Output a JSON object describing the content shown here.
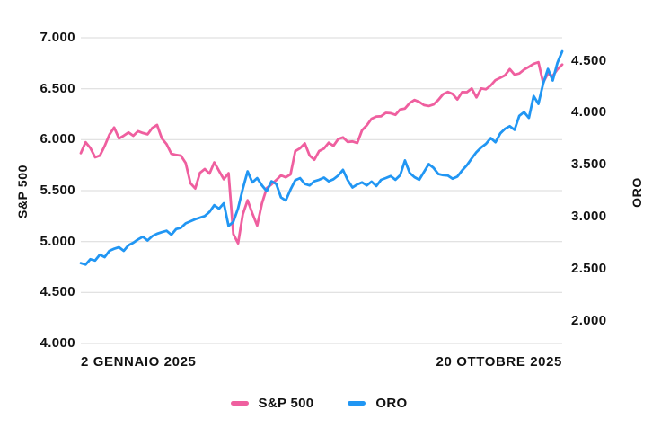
{
  "page": {
    "background": "#ffffff"
  },
  "chart_data": {
    "type": "line",
    "title": "",
    "x_axis": {
      "start_label": "2 GENNAIO 2025",
      "end_label": "20 OTTOBRE 2025"
    },
    "left_axis": {
      "label": "S&P 500",
      "ticks": [
        "7.000",
        "6.500",
        "6.000",
        "5.500",
        "5.000",
        "4.500",
        "4.000"
      ],
      "tick_values": [
        7000,
        6500,
        6000,
        5500,
        5000,
        4500,
        4000
      ],
      "range": [
        4000,
        7000
      ]
    },
    "right_axis": {
      "label": "ORO",
      "ticks": [
        "4.500",
        "4.000",
        "3.500",
        "3.000",
        "2.500",
        "2.000"
      ],
      "tick_values": [
        4500,
        4000,
        3500,
        3000,
        2500,
        2000
      ],
      "range": [
        2000,
        4500
      ]
    },
    "grid": {
      "show": true,
      "color": "#d9d9d9"
    },
    "legend": {
      "position": "bottom-center",
      "items": [
        "S&P 500",
        "ORO"
      ]
    },
    "series": [
      {
        "name": "S&P 500",
        "axis": "left",
        "color": "#EF5F9F",
        "values": [
          5868,
          5975,
          5918,
          5827,
          5843,
          5937,
          6049,
          6119,
          6012,
          6039,
          6071,
          6038,
          6083,
          6066,
          6052,
          6115,
          6144,
          6013,
          5955,
          5862,
          5850,
          5843,
          5770,
          5572,
          5521,
          5675,
          5712,
          5668,
          5777,
          5693,
          5612,
          5671,
          5074,
          4983,
          5268,
          5406,
          5276,
          5158,
          5376,
          5525,
          5561,
          5604,
          5650,
          5631,
          5660,
          5887,
          5916,
          5963,
          5845,
          5803,
          5888,
          5912,
          5970,
          5939,
          6006,
          6022,
          5977,
          5983,
          5968,
          6092,
          6141,
          6205,
          6227,
          6230,
          6263,
          6260,
          6244,
          6297,
          6306,
          6359,
          6389,
          6371,
          6339,
          6330,
          6345,
          6389,
          6446,
          6469,
          6449,
          6395,
          6467,
          6466,
          6502,
          6415,
          6502,
          6495,
          6532,
          6584,
          6607,
          6632,
          6693,
          6638,
          6650,
          6688,
          6715,
          6745,
          6760,
          6560,
          6650,
          6625,
          6690,
          6737
        ]
      },
      {
        "name": "ORO",
        "axis": "right",
        "color": "#2196F3",
        "values": [
          2552,
          2538,
          2590,
          2577,
          2633,
          2610,
          2670,
          2690,
          2705,
          2670,
          2725,
          2748,
          2780,
          2806,
          2770,
          2812,
          2835,
          2850,
          2863,
          2825,
          2880,
          2892,
          2935,
          2955,
          2975,
          2990,
          3005,
          3045,
          3110,
          3076,
          3128,
          2910,
          2950,
          3080,
          3270,
          3435,
          3330,
          3370,
          3300,
          3245,
          3340,
          3315,
          3185,
          3155,
          3260,
          3350,
          3370,
          3315,
          3300,
          3340,
          3355,
          3375,
          3340,
          3360,
          3395,
          3450,
          3350,
          3280,
          3310,
          3330,
          3300,
          3337,
          3294,
          3354,
          3371,
          3390,
          3355,
          3400,
          3540,
          3420,
          3380,
          3355,
          3430,
          3505,
          3470,
          3410,
          3400,
          3395,
          3365,
          3385,
          3445,
          3495,
          3560,
          3620,
          3665,
          3700,
          3755,
          3715,
          3800,
          3845,
          3870,
          3835,
          3970,
          4005,
          3950,
          4160,
          4085,
          4280,
          4420,
          4310,
          4480,
          4590
        ]
      }
    ]
  }
}
